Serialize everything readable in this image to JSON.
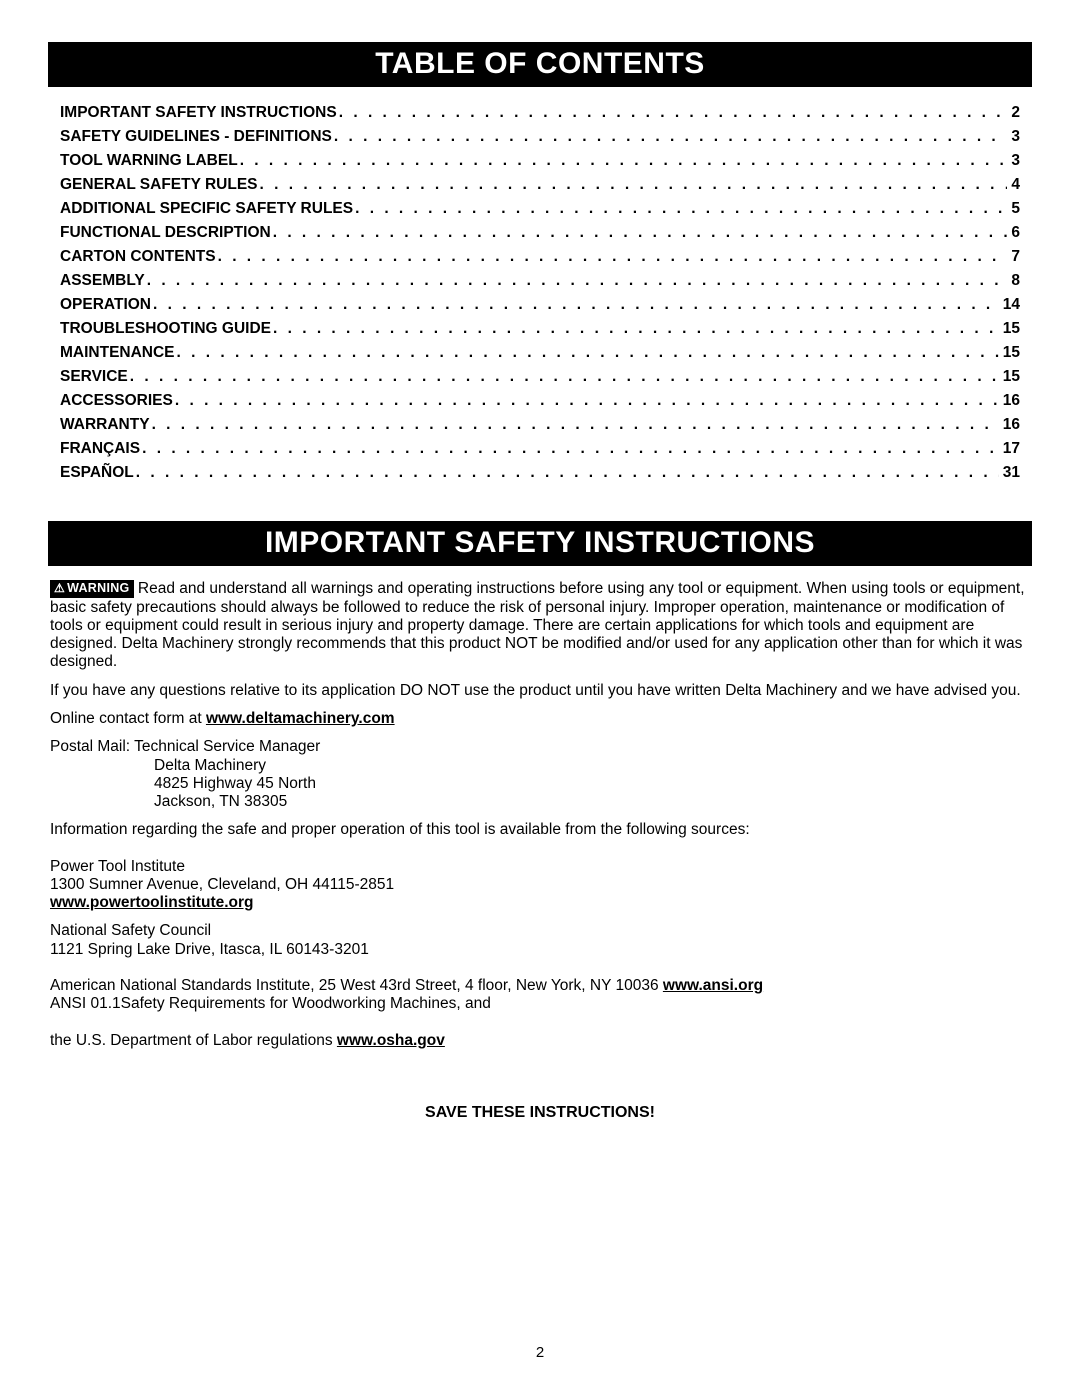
{
  "banner_toc": "TABLE OF CONTENTS",
  "banner_safety": "IMPORTANT SAFETY INSTRUCTIONS",
  "toc": [
    {
      "title": "IMPORTANT SAFETY INSTRUCTIONS",
      "page": "2"
    },
    {
      "title": "SAFETY GUIDELINES - DEFINITIONS",
      "page": "3"
    },
    {
      "title": "TOOL WARNING LABEL",
      "page": "3"
    },
    {
      "title": "GENERAL SAFETY RULES",
      "page": "4"
    },
    {
      "title": "ADDITIONAL SPECIFIC SAFETY RULES",
      "page": "5"
    },
    {
      "title": "FUNCTIONAL DESCRIPTION",
      "page": "6"
    },
    {
      "title": "CARTON CONTENTS",
      "page": "7"
    },
    {
      "title": "ASSEMBLY",
      "page": "8"
    },
    {
      "title": "OPERATION",
      "page": "14"
    },
    {
      "title": "TROUBLESHOOTING GUIDE",
      "page": "15"
    },
    {
      "title": "MAINTENANCE",
      "page": "15"
    },
    {
      "title": "SERVICE",
      "page": "15"
    },
    {
      "title": "ACCESSORIES",
      "page": "16"
    },
    {
      "title": "WARRANTY",
      "page": "16"
    },
    {
      "title": "FRANÇAIS",
      "page": "17"
    },
    {
      "title": "ESPAÑOL",
      "page": "31"
    }
  ],
  "warning_label": "WARNING",
  "para1": "Read and understand all warnings and operating instructions before using any tool or equipment. When using tools or equipment, basic safety precautions should always be followed to reduce the risk of personal injury. Improper operation, maintenance or modification of tools or equipment could result in serious injury and property damage. There are certain applications for which tools and equipment are designed. Delta Machinery strongly recommends that this product NOT be modified and/or used for any application other than for which it was designed.",
  "para2": "If you have any questions relative to its application DO NOT use the product until you have written Delta Machinery and we have advised you.",
  "online_prefix": "Online contact form at ",
  "online_link": "www.deltamachinery.com",
  "postal_line1": "Postal Mail: Technical Service Manager",
  "postal_line2": "Delta Machinery",
  "postal_line3": "4825 Highway 45 North",
  "postal_line4": "Jackson, TN 38305",
  "para3": "Information regarding the safe and proper operation of this tool is available from the following sources:",
  "pti_line1": "Power Tool Institute",
  "pti_line2": "1300 Sumner Avenue, Cleveland, OH 44115-2851",
  "pti_link": "www.powertoolinstitute.org",
  "nsc_line1": "National Safety Council",
  "nsc_line2": "1121 Spring Lake Drive, Itasca, IL 60143-3201",
  "ansi_prefix": "American National Standards Institute, 25 West 43rd Street, 4 floor, New York, NY 10036 ",
  "ansi_link": "www.ansi.org",
  "ansi_line2": "ANSI 01.1Safety Requirements for Woodworking Machines, and",
  "osha_prefix": "the U.S. Department of Labor regulations ",
  "osha_link": "www.osha.gov",
  "save": "SAVE THESE INSTRUCTIONS!",
  "page_number": "2",
  "dots": ". . . . . . . . . . . . . . . . . . . . . . . . . . . . . . . . . . . . . . . . . . . . . . . . . . . . . . . . . . . . . . . . . . . . . . . . . . . . . . . . . . . . . . . . . . . . . . . . . . . . . . . . . . . . . . . . . . . . . . . . . . . . . . . . . ."
}
